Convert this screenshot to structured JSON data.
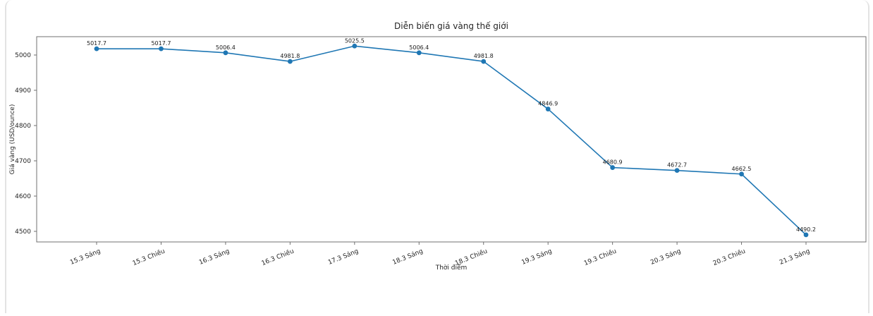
{
  "chart_data": {
    "type": "line",
    "title": "Diễn biến giá vàng thế giới",
    "xlabel": "Thời điểm",
    "ylabel": "Giá vàng (USD/ounce)",
    "categories": [
      "15.3 Sáng",
      "15.3 Chiều",
      "16.3 Sáng",
      "16.3 Chiều",
      "17.3 Sáng",
      "18.3 Sáng",
      "18.3 Chiều",
      "19.3 Sáng",
      "19.3 Chiều",
      "20.3 Sáng",
      "20.3 Chiều",
      "21.3 Sáng"
    ],
    "values": [
      5017.7,
      5017.7,
      5006.4,
      4981.8,
      5025.5,
      5006.4,
      4981.8,
      4846.9,
      4680.9,
      4672.7,
      4662.5,
      4490.2
    ],
    "point_labels": [
      "5017.7",
      "5017.7",
      "5006.4",
      "4981.8",
      "5025.5",
      "5006.4",
      "4981.8",
      "4846.9",
      "4680.9",
      "4672.7",
      "4662.5",
      "4490.2"
    ],
    "yticks": [
      4500,
      4600,
      4700,
      4800,
      4900,
      5000
    ],
    "ylim": [
      4470,
      5052
    ],
    "grid": false,
    "legend": "none",
    "line_color": "#1f77b4",
    "marker": "circle",
    "spine_color": "#707070",
    "text_color": "#262626",
    "card_border_color": "#e3e3e3",
    "x_tick_rotation_deg": 22
  }
}
